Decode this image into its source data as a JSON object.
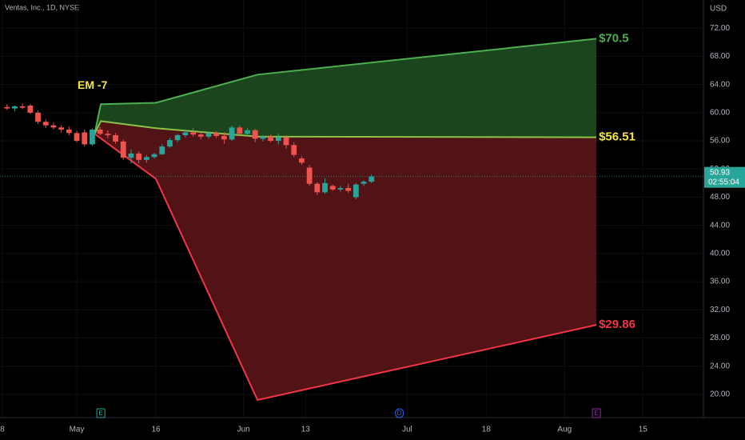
{
  "chart_data": {
    "type": "candlestick",
    "header": "Ventas, Inc., 1D, NYSE",
    "currency": "USD",
    "xlim": [
      -9.9,
      80.8
    ],
    "xticks": [
      {
        "value": -9.6,
        "label": "8"
      },
      {
        "value": 0,
        "label": "May"
      },
      {
        "value": 10.2,
        "label": "16"
      },
      {
        "value": 21.5,
        "label": "Jun"
      },
      {
        "value": 29.5,
        "label": "13"
      },
      {
        "value": 42.6,
        "label": "Jul"
      },
      {
        "value": 52.8,
        "label": "18"
      },
      {
        "value": 62.9,
        "label": "Aug"
      },
      {
        "value": 73,
        "label": "15"
      }
    ],
    "ylim": [
      16.7,
      76
    ],
    "yticks": [
      {
        "value": 72,
        "label": "72.00"
      },
      {
        "value": 68,
        "label": "68.00"
      },
      {
        "value": 64,
        "label": "64.00"
      },
      {
        "value": 60,
        "label": "60.00"
      },
      {
        "value": 56,
        "label": "56.00"
      },
      {
        "value": 52,
        "label": "52.00"
      },
      {
        "value": 48,
        "label": "48.00"
      },
      {
        "value": 44,
        "label": "44.00"
      },
      {
        "value": 40,
        "label": "40.00"
      },
      {
        "value": 36,
        "label": "36.00"
      },
      {
        "value": 32,
        "label": "32.00"
      },
      {
        "value": 28,
        "label": "28.00"
      },
      {
        "value": 24,
        "label": "24.00"
      },
      {
        "value": 20,
        "label": "20.00"
      }
    ],
    "grid": true,
    "up_color": "#26a69a",
    "down_color": "#ef5350",
    "x": [
      -9,
      -8,
      -7,
      -6,
      -5,
      -4,
      -3,
      -2,
      -1,
      0,
      1,
      2,
      3,
      4,
      5,
      6,
      7,
      8,
      9,
      10,
      11,
      12,
      13,
      14,
      15,
      16,
      17,
      18,
      19,
      20,
      21,
      22,
      23,
      24,
      25,
      26,
      27,
      28,
      29,
      30,
      31,
      32,
      33,
      34,
      35,
      36,
      37,
      38
    ],
    "open": [
      60.8,
      60.6,
      60.9,
      61.0,
      60.0,
      58.7,
      58.2,
      57.9,
      57.6,
      57.1,
      57.2,
      55.5,
      57.6,
      57.0,
      56.8,
      55.9,
      53.6,
      54.2,
      53.3,
      53.7,
      54.1,
      55.2,
      56.1,
      56.8,
      57.2,
      56.9,
      56.6,
      57.1,
      56.7,
      56.2,
      57.9,
      57.0,
      57.5,
      56.3,
      56.6,
      56.0,
      56.5,
      55.4,
      53.5,
      52.2,
      49.9,
      48.7,
      49.6,
      49.1,
      49.3,
      48.0,
      49.9,
      50.2
    ],
    "high": [
      61.2,
      61.0,
      61.3,
      61.2,
      60.3,
      59.0,
      58.6,
      58.2,
      58.0,
      57.4,
      57.6,
      57.8,
      58.0,
      57.5,
      57.1,
      56.2,
      54.8,
      54.5,
      54.0,
      54.3,
      55.5,
      56.4,
      57.0,
      57.6,
      57.8,
      57.3,
      57.3,
      57.4,
      57.2,
      58.2,
      58.2,
      57.8,
      57.7,
      56.8,
      56.9,
      57.0,
      56.8,
      55.8,
      53.8,
      52.6,
      50.1,
      50.7,
      49.8,
      49.6,
      49.9,
      50.0,
      50.4,
      51.2
    ],
    "low": [
      60.4,
      60.2,
      60.5,
      59.8,
      58.4,
      57.8,
      57.6,
      57.2,
      56.8,
      55.8,
      55.2,
      55.3,
      56.8,
      56.4,
      55.6,
      53.3,
      52.8,
      52.8,
      52.9,
      53.5,
      54.0,
      55.0,
      55.8,
      56.5,
      56.6,
      56.2,
      56.3,
      56.4,
      55.6,
      56.0,
      56.8,
      56.6,
      55.8,
      55.9,
      55.8,
      55.5,
      54.9,
      53.7,
      52.6,
      49.6,
      48.3,
      48.5,
      48.9,
      48.8,
      48.6,
      47.7,
      49.6,
      50.0
    ],
    "close": [
      60.6,
      60.9,
      60.7,
      60.0,
      58.7,
      58.2,
      57.9,
      57.6,
      57.1,
      56.0,
      55.5,
      57.6,
      57.0,
      56.8,
      55.9,
      53.6,
      54.2,
      53.3,
      53.7,
      54.1,
      55.2,
      56.1,
      56.8,
      57.2,
      56.9,
      56.6,
      57.1,
      56.7,
      56.2,
      57.9,
      57.0,
      57.5,
      56.3,
      56.6,
      56.0,
      56.5,
      55.4,
      54.0,
      52.9,
      49.9,
      48.7,
      50.0,
      49.1,
      49.3,
      48.9,
      49.8,
      50.2,
      50.93
    ],
    "last_price": {
      "value": 50.93,
      "label": "50.93",
      "countdown": "02:55:04",
      "color": "#26a69a"
    },
    "annotation": {
      "text": "EM -7",
      "x": 0.1,
      "y": 63.8,
      "color": "#f5e642"
    },
    "bands": [
      {
        "name": "upper",
        "color": "#4caf50",
        "x": [
          2.3,
          3.1,
          10.2,
          23.3,
          67
        ],
        "values": [
          57.0,
          61.2,
          61.4,
          65.4,
          70.5
        ],
        "value_labels": [
          null,
          null,
          null,
          null,
          "$70.5"
        ]
      },
      {
        "name": "mid",
        "color": "#8bc34a",
        "label_color": "#f5e642",
        "x": [
          2.3,
          3.1,
          10.2,
          23.3,
          67
        ],
        "values": [
          57.0,
          58.8,
          57.8,
          56.6,
          56.51
        ],
        "value_labels": [
          null,
          null,
          null,
          null,
          "$56.51"
        ]
      },
      {
        "name": "lower",
        "color": "#f23645",
        "x": [
          2.3,
          10.2,
          23.3,
          67
        ],
        "values": [
          57.0,
          50.6,
          19.2,
          29.86
        ],
        "value_labels": [
          null,
          null,
          null,
          "$29.86"
        ]
      }
    ],
    "fills": [
      {
        "between": [
          0,
          1
        ],
        "color": "#1e4d20"
      },
      {
        "between": [
          1,
          2
        ],
        "color": "#5b1519"
      }
    ],
    "events": [
      {
        "x": 3.1,
        "label": "E",
        "color": "#26a69a"
      },
      {
        "x": 41.6,
        "label": "D",
        "color": "#2962ff"
      },
      {
        "x": 67,
        "label": "E",
        "color": "#9c27b0"
      }
    ]
  }
}
